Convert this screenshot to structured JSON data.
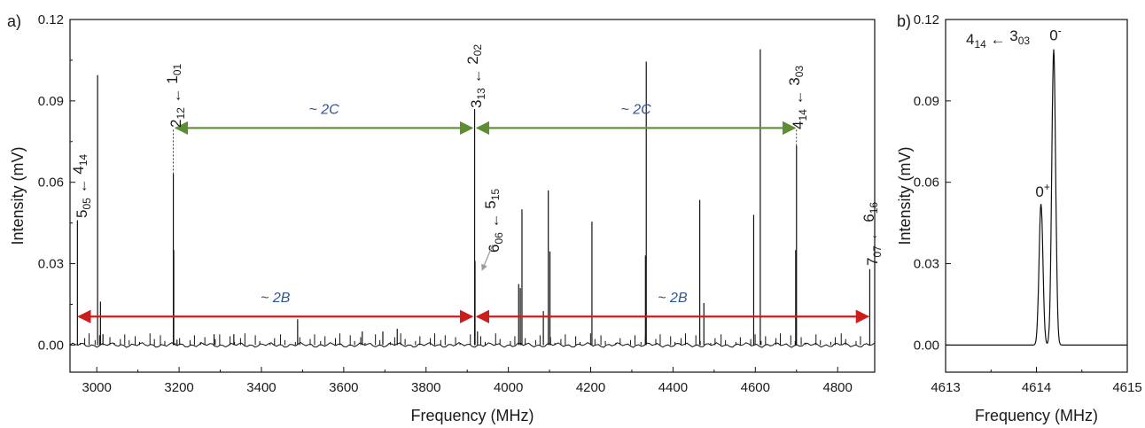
{
  "colors": {
    "green": "#5e8e34",
    "red": "#cc1d1d",
    "blue": "#2f5596",
    "conf": "#cc1d1d",
    "ink": "#111111"
  },
  "chart_data": [
    {
      "panel": "a)",
      "type": "line",
      "xlabel": "Frequency (MHz)",
      "ylabel": "Intensity (mV)",
      "xlim": [
        2935,
        4890
      ],
      "ylim": [
        -0.01,
        0.12
      ],
      "xticks": [
        3000,
        3200,
        3400,
        3600,
        3800,
        4000,
        4200,
        4400,
        4600,
        4800
      ],
      "yticks": [
        0.0,
        0.03,
        0.06,
        0.09,
        0.12
      ],
      "ytick_labels": [
        "0.00",
        "0.03",
        "0.06",
        "0.09",
        "0.12"
      ],
      "peaks": [
        {
          "x": 2953,
          "y": 0.046
        },
        {
          "x": 3002,
          "y": 0.0995
        },
        {
          "x": 3009,
          "y": 0.016
        },
        {
          "x": 3015,
          "y": 0.004
        },
        {
          "x": 3186,
          "y": 0.063
        },
        {
          "x": 3187,
          "y": 0.035
        },
        {
          "x": 3195,
          "y": 0.002
        },
        {
          "x": 3285,
          "y": 0.004
        },
        {
          "x": 3333,
          "y": 0.004
        },
        {
          "x": 3488,
          "y": 0.0095
        },
        {
          "x": 3645,
          "y": 0.005
        },
        {
          "x": 3695,
          "y": 0.005
        },
        {
          "x": 3730,
          "y": 0.006
        },
        {
          "x": 3918,
          "y": 0.087
        },
        {
          "x": 3919,
          "y": 0.031
        },
        {
          "x": 3925,
          "y": 0.005
        },
        {
          "x": 4025,
          "y": 0.0225
        },
        {
          "x": 4029,
          "y": 0.021
        },
        {
          "x": 4033,
          "y": 0.05
        },
        {
          "x": 4085,
          "y": 0.0125
        },
        {
          "x": 4097,
          "y": 0.057
        },
        {
          "x": 4101,
          "y": 0.0345
        },
        {
          "x": 4203,
          "y": 0.0455
        },
        {
          "x": 4333,
          "y": 0.033
        },
        {
          "x": 4335,
          "y": 0.1045
        },
        {
          "x": 4465,
          "y": 0.0535
        },
        {
          "x": 4475,
          "y": 0.0155
        },
        {
          "x": 4596,
          "y": 0.048
        },
        {
          "x": 4612,
          "y": 0.109
        },
        {
          "x": 4698,
          "y": 0.035
        },
        {
          "x": 4700,
          "y": 0.0735
        },
        {
          "x": 4878,
          "y": 0.028
        }
      ],
      "annotations": {
        "t505": {
          "pre": "5",
          "pre_sub": "05",
          "arrow": "←",
          "post": "4",
          "post_sub": "14"
        },
        "t212": {
          "pre": "2",
          "pre_sub": "12",
          "arrow": "←",
          "post": "1",
          "post_sub": "01"
        },
        "t313": {
          "pre": "3",
          "pre_sub": "13",
          "arrow": "←",
          "post": "2",
          "post_sub": "02"
        },
        "t606": {
          "pre": "6",
          "pre_sub": "06",
          "arrow": "←",
          "post": "5",
          "post_sub": "15"
        },
        "t414": {
          "pre": "4",
          "pre_sub": "14",
          "arrow": "←",
          "post": "3",
          "post_sub": "03"
        },
        "t707": {
          "pre": "7",
          "pre_sub": "07",
          "arrow": "←",
          "post": "6",
          "post_sub": "16"
        }
      },
      "spacing_labels": {
        "c_left": "~ 2C",
        "c_right": "~ 2C",
        "b_left": "~ 2B",
        "b_right": "~ 2B"
      },
      "spacing_arrows": [
        {
          "name": "c-left",
          "x1": 3192,
          "x2": 3912,
          "y": 0.08,
          "color": "green",
          "label": "c_left"
        },
        {
          "name": "c-right",
          "x1": 3924,
          "x2": 4696,
          "y": 0.08,
          "color": "green",
          "label": "c_right"
        },
        {
          "name": "b-left",
          "x1": 2956,
          "x2": 3912,
          "y": 0.0105,
          "color": "red",
          "label": "b_left"
        },
        {
          "name": "b-right",
          "x1": 3924,
          "x2": 4874,
          "y": 0.0105,
          "color": "red",
          "label": "b_right"
        }
      ]
    },
    {
      "panel": "b)",
      "type": "line",
      "xlabel": "Frequency (MHz)",
      "ylabel": "Intensity (mV)",
      "xlim": [
        4613,
        4615
      ],
      "ylim": [
        -0.01,
        0.12
      ],
      "xticks": [
        4613,
        4614,
        4615
      ],
      "yticks": [
        0.0,
        0.03,
        0.06,
        0.09,
        0.12
      ],
      "ytick_labels": [
        "0.00",
        "0.03",
        "0.06",
        "0.09",
        "0.12"
      ],
      "peaks": [
        {
          "name": "0+",
          "x": 4614.05,
          "y": 0.052,
          "width": 0.03
        },
        {
          "name": "0-",
          "x": 4614.19,
          "y": 0.109,
          "width": 0.03
        }
      ],
      "transition": {
        "pre": "4",
        "pre_sub": "14",
        "arrow": "←",
        "post": "3",
        "post_sub": "03"
      },
      "labels": {
        "plus": "0",
        "plus_sup": "+",
        "minus": "0",
        "minus_sup": "-"
      }
    }
  ]
}
